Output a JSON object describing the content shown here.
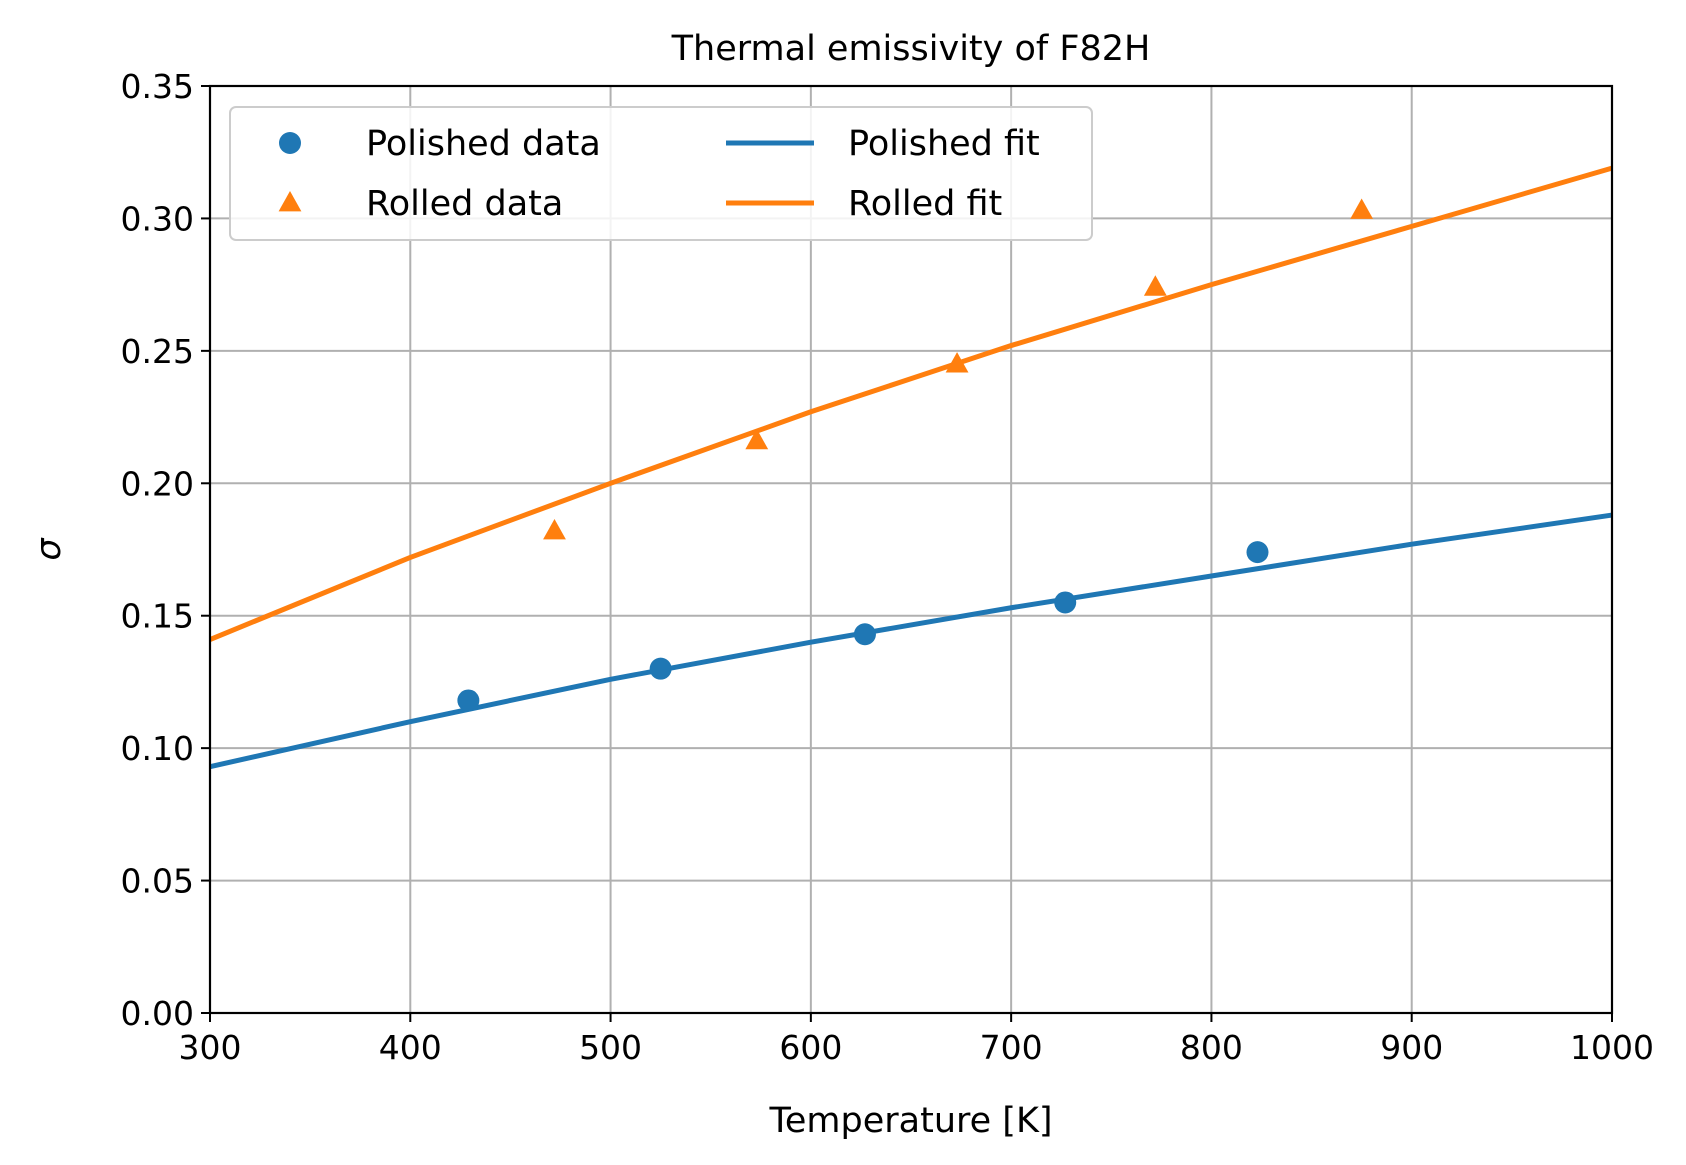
{
  "chart_data": {
    "type": "scatter",
    "title": "Thermal emissivity of F82H",
    "xlabel": "Temperature [K]",
    "ylabel": "σ",
    "xlim": [
      300,
      1000
    ],
    "ylim": [
      0.0,
      0.35
    ],
    "x_ticks": [
      "300",
      "400",
      "500",
      "600",
      "700",
      "800",
      "900",
      "1000"
    ],
    "y_ticks": [
      "0.00",
      "0.05",
      "0.10",
      "0.15",
      "0.20",
      "0.25",
      "0.30",
      "0.35"
    ],
    "grid": true,
    "legend_position": "upper-left",
    "legend_columns": 2,
    "series": [
      {
        "name": "Polished data",
        "kind": "scatter",
        "marker": "circle",
        "color": "#1f77b4",
        "x": [
          429,
          525,
          627,
          727,
          823
        ],
        "y": [
          0.118,
          0.13,
          0.143,
          0.155,
          0.174
        ]
      },
      {
        "name": "Rolled data",
        "kind": "scatter",
        "marker": "triangle",
        "color": "#ff7f0e",
        "x": [
          472,
          573,
          673,
          772,
          875
        ],
        "y": [
          0.182,
          0.216,
          0.245,
          0.274,
          0.303
        ]
      },
      {
        "name": "Polished fit",
        "kind": "line",
        "color": "#1f77b4",
        "x": [
          300,
          400,
          500,
          600,
          700,
          800,
          900,
          1000
        ],
        "y": [
          0.093,
          0.11,
          0.126,
          0.14,
          0.153,
          0.165,
          0.177,
          0.188
        ]
      },
      {
        "name": "Rolled fit",
        "kind": "line",
        "color": "#ff7f0e",
        "x": [
          300,
          400,
          500,
          600,
          700,
          800,
          900,
          1000
        ],
        "y": [
          0.141,
          0.172,
          0.2,
          0.227,
          0.252,
          0.275,
          0.297,
          0.319
        ]
      }
    ]
  }
}
